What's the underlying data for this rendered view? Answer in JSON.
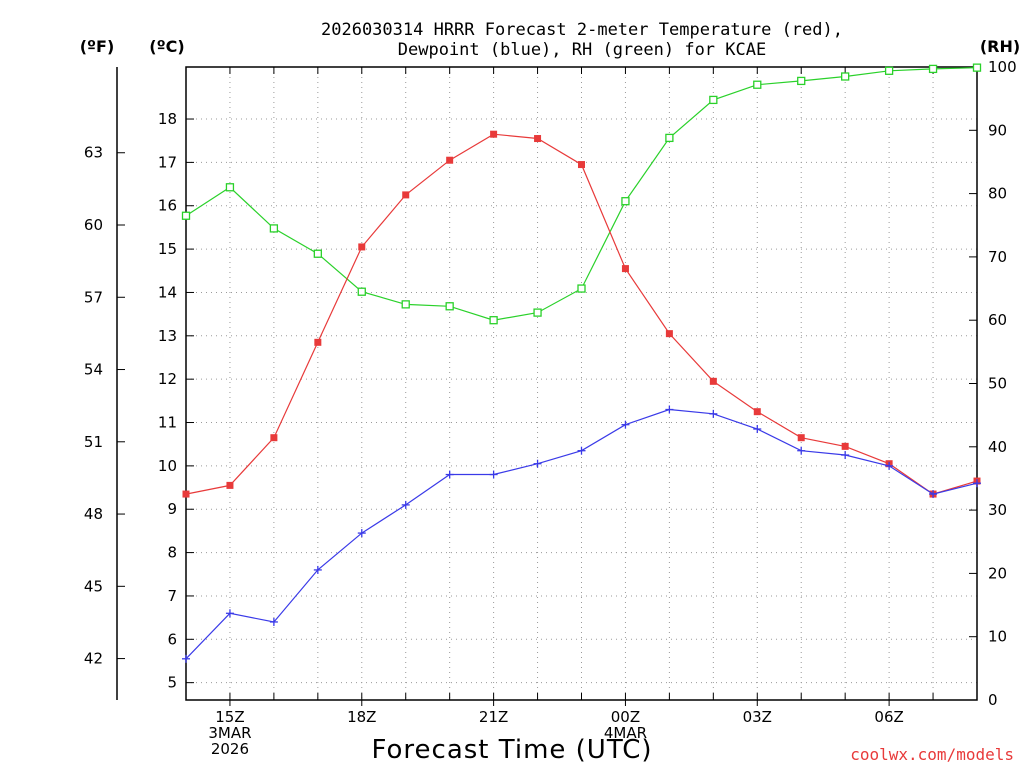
{
  "chart_data": {
    "type": "line",
    "title_line1": "2026030314 HRRR Forecast 2-meter Temperature (red),",
    "title_line2": "Dewpoint (blue), RH (green) for KCAE",
    "left_outer_label": "(ºF)",
    "left_inner_label": "(ºC)",
    "right_label": "(RH)",
    "xlabel": "Forecast Time (UTC)",
    "credit": "coolwx.com/models",
    "x_hours": [
      0,
      1,
      2,
      3,
      4,
      5,
      6,
      7,
      8,
      9,
      10,
      11,
      12,
      13,
      14,
      15,
      16,
      17,
      18
    ],
    "x_ticks": [
      {
        "hour": 1,
        "lines": [
          "15Z",
          "3MAR",
          "2026"
        ]
      },
      {
        "hour": 4,
        "lines": [
          "18Z"
        ]
      },
      {
        "hour": 7,
        "lines": [
          "21Z"
        ]
      },
      {
        "hour": 10,
        "lines": [
          "00Z",
          "4MAR"
        ]
      },
      {
        "hour": 13,
        "lines": [
          "03Z"
        ]
      },
      {
        "hour": 16,
        "lines": [
          "06Z"
        ]
      }
    ],
    "c_ticks": [
      "5",
      "6",
      "7",
      "8",
      "9",
      "10",
      "11",
      "12",
      "13",
      "14",
      "15",
      "16",
      "17",
      "18"
    ],
    "f_ticks": [
      "42",
      "45",
      "48",
      "51",
      "54",
      "57",
      "60",
      "63"
    ],
    "rh_ticks": [
      "0",
      "10",
      "20",
      "30",
      "40",
      "50",
      "60",
      "70",
      "80",
      "90",
      "100"
    ],
    "c_range": [
      4.6,
      19.2
    ],
    "rh_range": [
      0,
      100
    ],
    "series": [
      {
        "name": "Temperature",
        "color": "#e83a3a",
        "marker": "filled-square",
        "values": [
          9.35,
          9.55,
          10.65,
          12.85,
          15.05,
          16.25,
          17.05,
          17.65,
          17.55,
          16.95,
          14.55,
          13.05,
          11.95,
          11.25,
          10.65,
          10.45,
          10.05,
          9.35,
          9.65
        ]
      },
      {
        "name": "Dewpoint",
        "color": "#3a3ae8",
        "marker": "plus",
        "values": [
          5.55,
          6.6,
          6.4,
          7.6,
          8.45,
          9.1,
          9.8,
          9.8,
          10.05,
          10.35,
          10.95,
          11.3,
          11.2,
          10.85,
          10.35,
          10.25,
          10.0,
          9.35,
          9.6
        ]
      },
      {
        "name": "RH",
        "color": "#2ad12a",
        "marker": "open-square",
        "values": [
          76.5,
          81,
          74.5,
          70.5,
          64.5,
          62.5,
          62.2,
          60,
          61.2,
          65,
          78.8,
          88.8,
          94.8,
          97.2,
          97.8,
          98.5,
          99.4,
          99.7,
          99.9
        ]
      }
    ]
  }
}
